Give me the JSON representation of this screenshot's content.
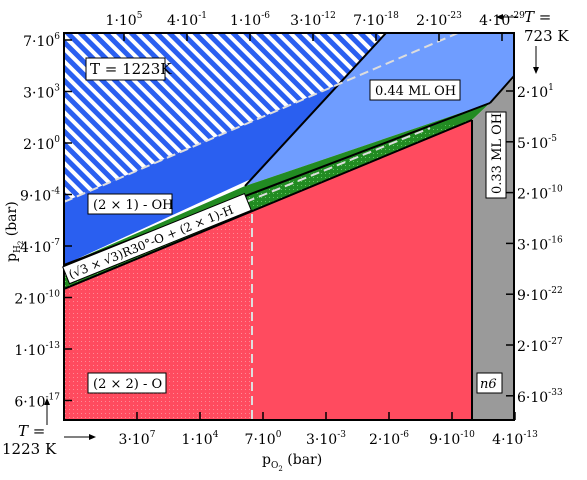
{
  "chart_data": {
    "type": "phase-diagram",
    "title": "",
    "xlabel": "p_O2 (bar)",
    "ylabel": "p_H2 (bar)",
    "x_ticks_bottom": [
      "3·10^7",
      "1·10^4",
      "7·10^0",
      "3·10^-3",
      "2·10^-6",
      "9·10^-10",
      "4·10^-13"
    ],
    "x_ticks_top": [
      "1·10^5",
      "4·10^-1",
      "1·10^-6",
      "3·10^-12",
      "7·10^-18",
      "2·10^-23",
      "4·10^-29"
    ],
    "y_ticks_left": [
      "7·10^6",
      "3·10^3",
      "2·10^0",
      "9·10^-4",
      "4·10^-7",
      "2·10^-10",
      "1·10^-13",
      "6·10^-17"
    ],
    "y_ticks_right": [
      "2·10^1",
      "5·10^-5",
      "2·10^-10",
      "3·10^-16",
      "9·10^-22",
      "2·10^-27",
      "6·10^-33"
    ],
    "temperature_annotations": {
      "top_right": "T = 723 K",
      "bottom_left": "T = 1223 K",
      "inset": "T = 1223K"
    },
    "regions": [
      {
        "name": "(2 × 2) - O",
        "color": "#ff4b5f"
      },
      {
        "name": "(√3 × √3)R30°-O + (2 × 1)-H",
        "color": "#228b22"
      },
      {
        "name": "(2 × 1) - OH",
        "color": "#2a5ff0"
      },
      {
        "name": "0.44 ML OH",
        "color": "#6f9dff"
      },
      {
        "name": "0.33 ML OH",
        "color": "#9a9a9a"
      },
      {
        "name": "n6",
        "color": "#9a9a9a"
      }
    ]
  }
}
